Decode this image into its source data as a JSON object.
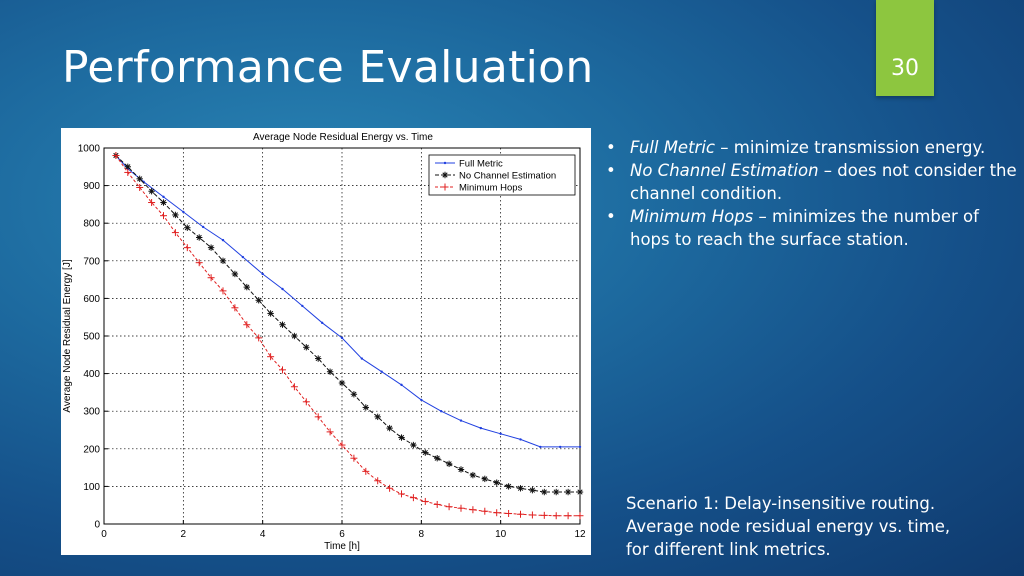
{
  "slide": {
    "title": "Performance Evaluation",
    "page_number": "30",
    "bullets": [
      {
        "term": "Full Metric",
        "rest": " – minimize transmission energy."
      },
      {
        "term": "No Channel Estimation",
        "rest": " – does not consider the channel condition."
      },
      {
        "term": "Minimum Hops",
        "rest": " – minimizes the number of hops to reach the surface station."
      }
    ],
    "caption_lines": [
      "Scenario 1: Delay-insensitive routing.",
      "Average node residual energy vs. time,",
      "for different link metrics."
    ],
    "accent_color": "#8dc63f"
  },
  "chart_data": {
    "type": "line",
    "title": "Average Node Residual Energy vs. Time",
    "xlabel": "Time [h]",
    "ylabel": "Average Node Residual Energy [J]",
    "xlim": [
      0,
      12
    ],
    "ylim": [
      0,
      1000
    ],
    "xticks": [
      0,
      2,
      4,
      6,
      8,
      10,
      12
    ],
    "yticks": [
      0,
      100,
      200,
      300,
      400,
      500,
      600,
      700,
      800,
      900,
      1000
    ],
    "grid": true,
    "legend_position": "top-right",
    "series": [
      {
        "name": "Full Metric",
        "color": "#2040e0",
        "marker": "point",
        "x": [
          0.3,
          0.6,
          1.0,
          1.5,
          2.0,
          2.5,
          3.0,
          3.5,
          4.0,
          4.5,
          5.0,
          5.5,
          6.0,
          6.5,
          7.0,
          7.5,
          8.0,
          8.5,
          9.0,
          9.5,
          10.0,
          10.5,
          11.0,
          11.5,
          12.0
        ],
        "y": [
          980,
          945,
          910,
          870,
          830,
          790,
          755,
          710,
          665,
          625,
          580,
          535,
          495,
          440,
          405,
          370,
          330,
          300,
          275,
          255,
          240,
          225,
          205,
          205,
          205
        ]
      },
      {
        "name": "No Channel Estimation",
        "color": "#111111",
        "marker": "star",
        "x": [
          0.3,
          0.6,
          0.9,
          1.2,
          1.5,
          1.8,
          2.1,
          2.4,
          2.7,
          3.0,
          3.3,
          3.6,
          3.9,
          4.2,
          4.5,
          4.8,
          5.1,
          5.4,
          5.7,
          6.0,
          6.3,
          6.6,
          6.9,
          7.2,
          7.5,
          7.8,
          8.1,
          8.4,
          8.7,
          9.0,
          9.3,
          9.6,
          9.9,
          10.2,
          10.5,
          10.8,
          11.1,
          11.4,
          11.7,
          12.0
        ],
        "y": [
          980,
          950,
          918,
          885,
          855,
          822,
          788,
          762,
          735,
          700,
          665,
          630,
          595,
          560,
          530,
          500,
          470,
          440,
          405,
          375,
          345,
          310,
          285,
          255,
          230,
          210,
          190,
          175,
          160,
          145,
          130,
          120,
          110,
          100,
          95,
          90,
          85,
          85,
          85,
          85
        ]
      },
      {
        "name": "Minimum Hops",
        "color": "#e02020",
        "marker": "plus",
        "x": [
          0.3,
          0.6,
          0.9,
          1.2,
          1.5,
          1.8,
          2.1,
          2.4,
          2.7,
          3.0,
          3.3,
          3.6,
          3.9,
          4.2,
          4.5,
          4.8,
          5.1,
          5.4,
          5.7,
          6.0,
          6.3,
          6.6,
          6.9,
          7.2,
          7.5,
          7.8,
          8.1,
          8.4,
          8.7,
          9.0,
          9.3,
          9.6,
          9.9,
          10.2,
          10.5,
          10.8,
          11.1,
          11.4,
          11.7,
          12.0
        ],
        "y": [
          980,
          935,
          895,
          855,
          820,
          775,
          735,
          695,
          655,
          620,
          575,
          530,
          495,
          445,
          410,
          365,
          325,
          285,
          245,
          210,
          175,
          140,
          115,
          95,
          80,
          70,
          60,
          52,
          46,
          42,
          38,
          34,
          30,
          28,
          26,
          24,
          23,
          22,
          22,
          22
        ]
      }
    ]
  }
}
